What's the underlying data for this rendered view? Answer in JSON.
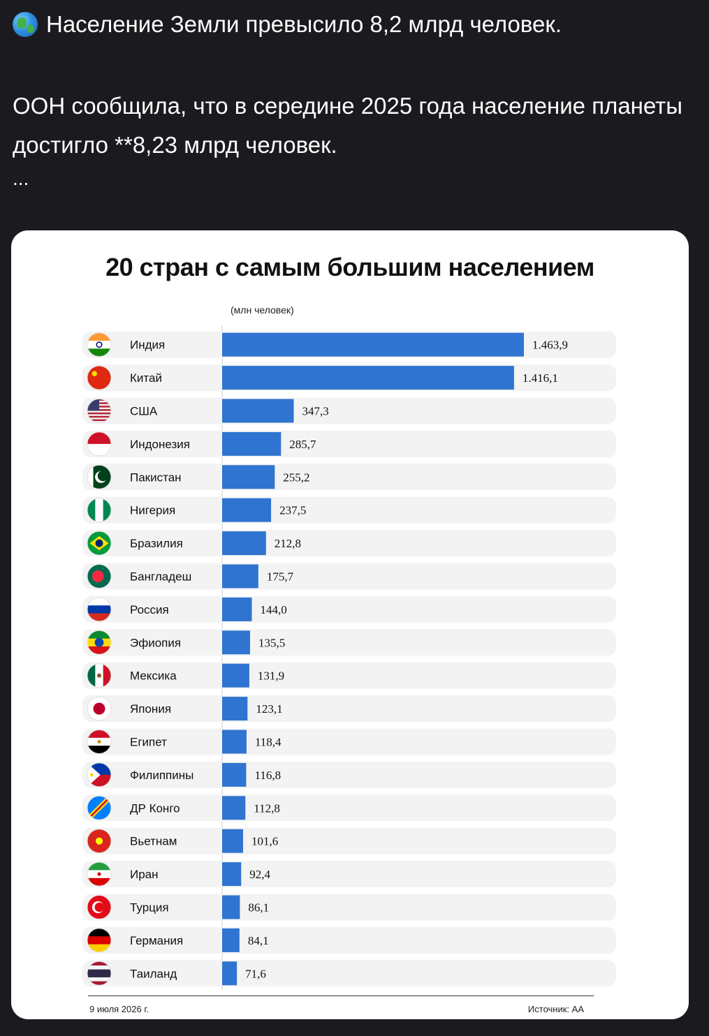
{
  "post": {
    "headline": "Население Земли превысило 8,2 млрд человек.",
    "body": "ООН сообщила, что в середине 2025 года население планеты достигло **8,23 млрд человек.",
    "ellipsis": "..."
  },
  "icons": {
    "headline": "globe-icon"
  },
  "colors": {
    "bar": "#2f74d0",
    "row_bg": "#f3f3f3",
    "page_bg": "#1b1b1f"
  },
  "chart_data": {
    "type": "bar",
    "orientation": "horizontal",
    "title": "20 стран с самым большим населением",
    "unit": "(млн человек)",
    "categories": [
      "Индия",
      "Китай",
      "США",
      "Индонезия",
      "Пакистан",
      "Нигерия",
      "Бразилия",
      "Бангладеш",
      "Россия",
      "Эфиопия",
      "Мексика",
      "Япония",
      "Египет",
      "Филиппины",
      "ДР Конго",
      "Вьетнам",
      "Иран",
      "Турция",
      "Германия",
      "Таиланд"
    ],
    "values": [
      1463.9,
      1416.1,
      347.3,
      285.7,
      255.2,
      237.5,
      212.8,
      175.7,
      144.0,
      135.5,
      131.9,
      123.1,
      118.4,
      116.8,
      112.8,
      101.6,
      92.4,
      86.1,
      84.1,
      71.6
    ],
    "value_labels": [
      "1.463,9",
      "1.416,1",
      "347,3",
      "285,7",
      "255,2",
      "237,5",
      "212,8",
      "175,7",
      "144,0",
      "135,5",
      "131,9",
      "123,1",
      "118,4",
      "116,8",
      "112,8",
      "101,6",
      "92,4",
      "86,1",
      "84,1",
      "71,6"
    ],
    "flag_icons": [
      "india-flag-icon",
      "china-flag-icon",
      "usa-flag-icon",
      "indonesia-flag-icon",
      "pakistan-flag-icon",
      "nigeria-flag-icon",
      "brazil-flag-icon",
      "bangladesh-flag-icon",
      "russia-flag-icon",
      "ethiopia-flag-icon",
      "mexico-flag-icon",
      "japan-flag-icon",
      "egypt-flag-icon",
      "philippines-flag-icon",
      "dr-congo-flag-icon",
      "vietnam-flag-icon",
      "iran-flag-icon",
      "turkey-flag-icon",
      "germany-flag-icon",
      "thailand-flag-icon"
    ],
    "xlim": [
      0,
      1463.9
    ],
    "grid": false,
    "legend": "none"
  },
  "footer": {
    "date": "9 июля 2026 г.",
    "source": "Источник: AA"
  }
}
